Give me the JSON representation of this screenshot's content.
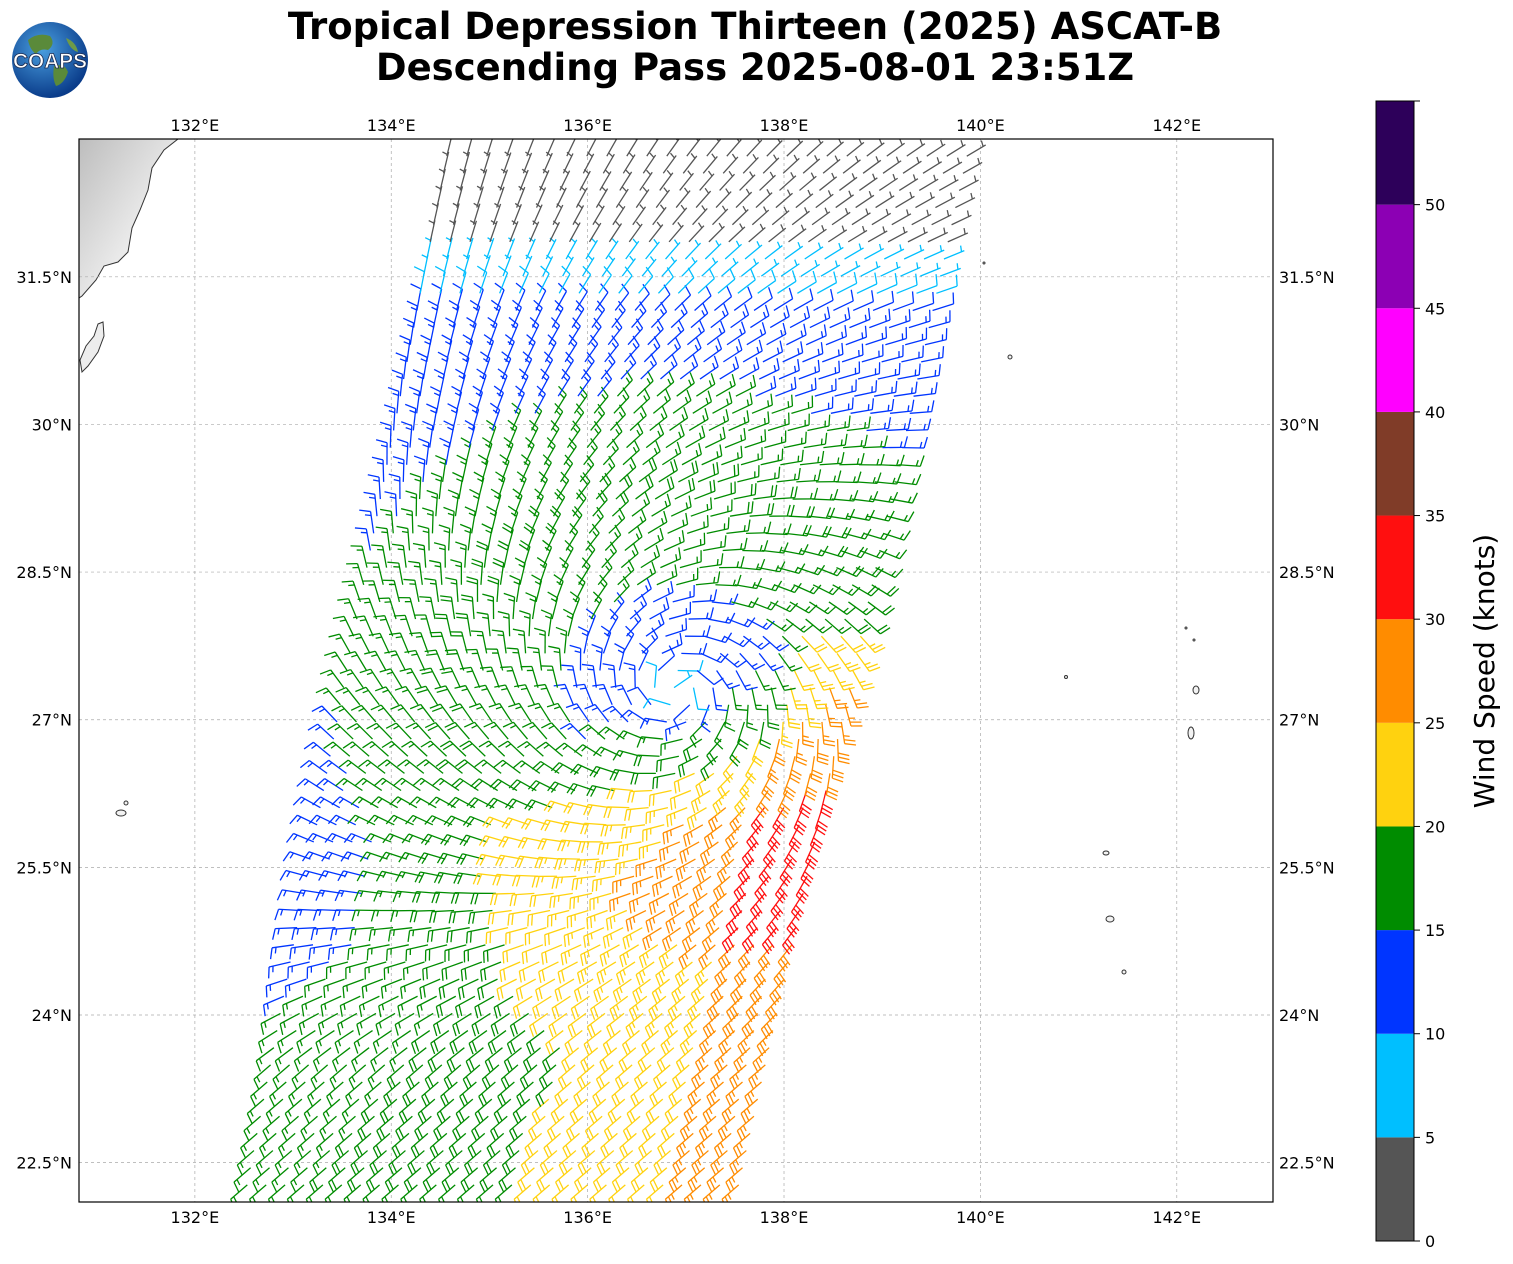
{
  "title": {
    "line1": "Tropical Depression Thirteen (2025) ASCAT-B",
    "line2": "Descending Pass 2025-08-01 23:51Z"
  },
  "logo": {
    "text": "COAPS"
  },
  "map": {
    "lon_range": [
      130.82,
      142.98
    ],
    "lat_range": [
      22.1,
      32.9
    ],
    "lon_ticks": [
      {
        "value": 132,
        "label": "132°E"
      },
      {
        "value": 134,
        "label": "134°E"
      },
      {
        "value": 136,
        "label": "136°E"
      },
      {
        "value": 138,
        "label": "138°E"
      },
      {
        "value": 140,
        "label": "140°E"
      },
      {
        "value": 142,
        "label": "142°E"
      }
    ],
    "lat_ticks": [
      {
        "value": 22.5,
        "label": "22.5°N"
      },
      {
        "value": 24,
        "label": "24°N"
      },
      {
        "value": 25.5,
        "label": "25.5°N"
      },
      {
        "value": 27,
        "label": "27°N"
      },
      {
        "value": 28.5,
        "label": "28.5°N"
      },
      {
        "value": 30,
        "label": "30°N"
      },
      {
        "value": 31.5,
        "label": "31.5°N"
      }
    ],
    "gridlines": true,
    "storm_center": {
      "lon": 136.9,
      "lat": 27.3
    },
    "swath": {
      "top_left": [
        134.6,
        32.9
      ],
      "top_right": [
        139.9,
        32.9
      ],
      "bottom_right": [
        137.5,
        22.1
      ],
      "bottom_left": [
        132.5,
        22.1
      ]
    }
  },
  "colorbar": {
    "label": "Wind Speed (knots)",
    "bins": [
      {
        "from": 0,
        "to": 5,
        "color": "#555555"
      },
      {
        "from": 5,
        "to": 10,
        "color": "#00bfff"
      },
      {
        "from": 10,
        "to": 15,
        "color": "#0035ff"
      },
      {
        "from": 15,
        "to": 20,
        "color": "#008c00"
      },
      {
        "from": 20,
        "to": 25,
        "color": "#ffd20f"
      },
      {
        "from": 25,
        "to": 30,
        "color": "#ff8c00"
      },
      {
        "from": 30,
        "to": 35,
        "color": "#ff0f0f"
      },
      {
        "from": 35,
        "to": 40,
        "color": "#803c28"
      },
      {
        "from": 40,
        "to": 45,
        "color": "#ff00ff"
      },
      {
        "from": 45,
        "to": 50,
        "color": "#8c00b4"
      },
      {
        "from": 50,
        "to": 55,
        "color": "#2d005a"
      }
    ],
    "tick_labels": [
      "0",
      "5",
      "10",
      "15",
      "20",
      "25",
      "30",
      "35",
      "40",
      "45",
      "50"
    ]
  }
}
